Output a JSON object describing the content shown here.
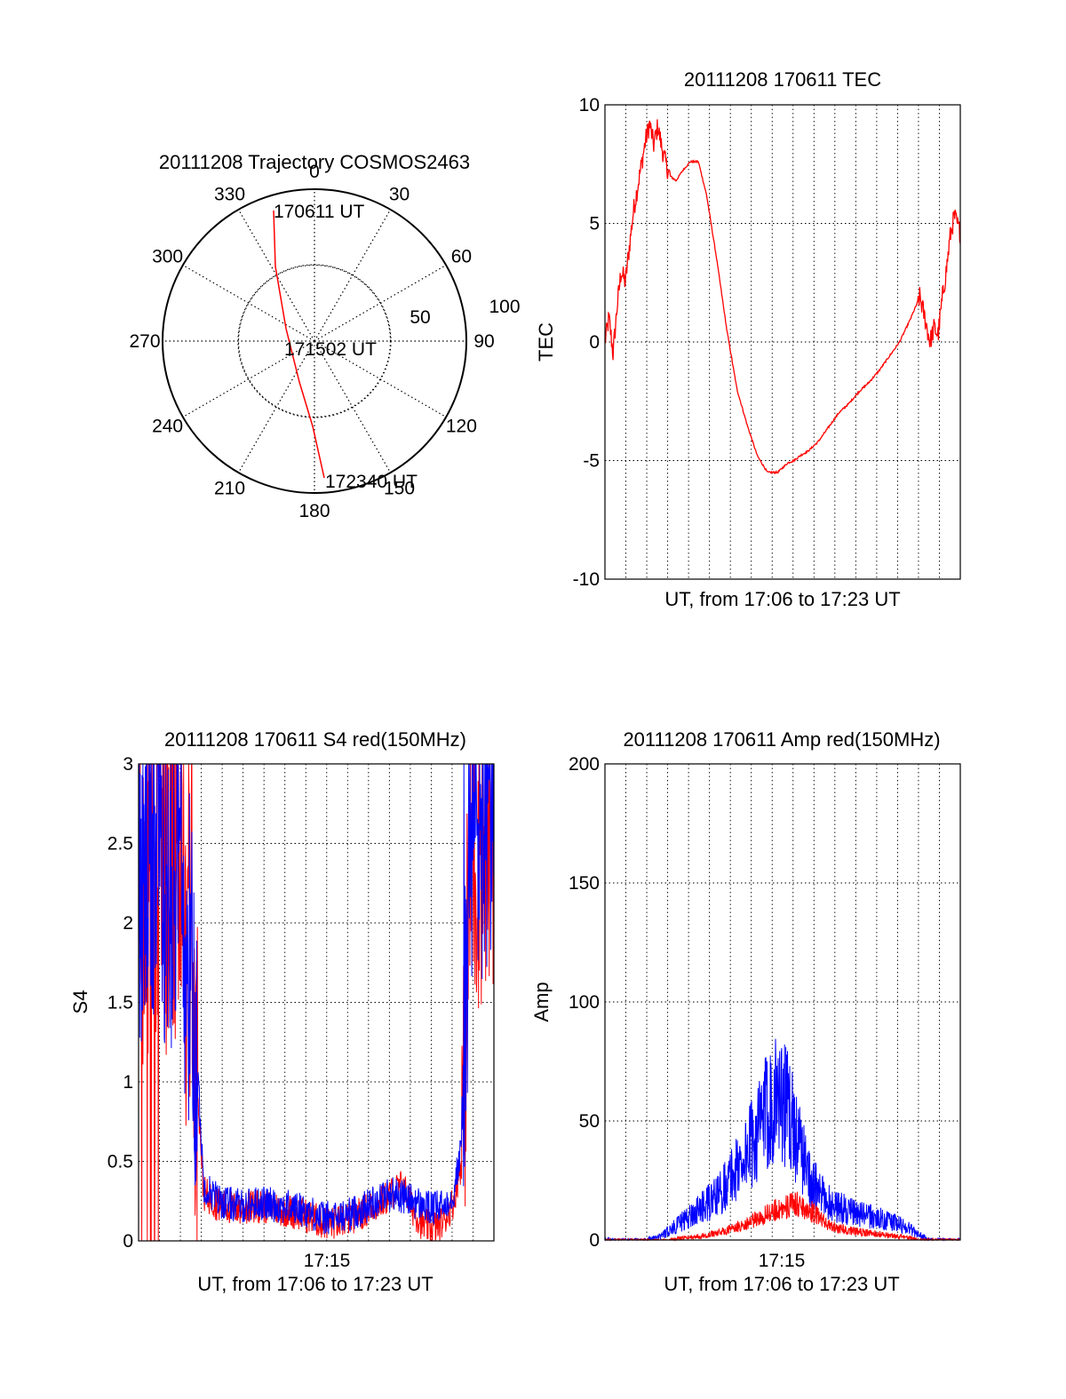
{
  "chart_data": [
    {
      "type": "polar",
      "title": "20111208 Trajectory COSMOS2463",
      "angle_labels": [
        "0",
        "30",
        "60",
        "90",
        "120",
        "150",
        "180",
        "210",
        "240",
        "270",
        "300",
        "330"
      ],
      "radial_labels": [
        "50",
        "100"
      ],
      "annotations": [
        "170611 UT",
        "171502 UT",
        "172340 UT"
      ],
      "series": [
        {
          "color": "#ff0000",
          "points_az_el": [
            [
              -17,
              15
            ],
            [
              -20,
              30
            ],
            [
              -45,
              80
            ],
            [
              150,
              88
            ],
            [
              164,
              60
            ],
            [
              170,
              40
            ],
            [
              172,
              20
            ],
            [
              173,
              8
            ]
          ]
        }
      ]
    },
    {
      "type": "line",
      "title": "20111208 170611 TEC",
      "ylabel": "TEC",
      "xlabel": "UT, from 17:06 to 17:23 UT",
      "ylim": [
        -10,
        10
      ],
      "yticks": [
        "10",
        "5",
        "0",
        "-5",
        "-10"
      ],
      "xlim": [
        "17:06:11",
        "17:23:40"
      ],
      "grid": true,
      "series": [
        {
          "color": "#ff0000",
          "x_min": [
            0,
            0.2,
            0.4,
            0.6,
            0.8,
            1.0,
            1.2,
            1.4,
            1.6,
            1.8,
            2.0,
            2.2,
            2.4,
            2.6,
            2.8,
            3.0,
            3.2,
            3.5,
            3.8,
            4.2,
            4.6,
            5.0,
            5.5,
            6.0,
            6.5,
            7.0,
            7.5,
            8.0,
            8.5,
            9.0,
            9.3,
            9.6,
            10.0,
            10.5,
            11.0,
            11.5,
            12.0,
            12.5,
            13.0,
            13.5,
            14.0,
            14.5,
            15.0,
            15.5,
            15.8,
            16.0,
            16.2,
            16.4,
            16.6,
            16.8,
            17.0,
            17.2,
            17.49
          ],
          "values": [
            0,
            1,
            -0.5,
            1.5,
            3,
            2.5,
            4,
            5.5,
            6.5,
            7.5,
            8.5,
            9.2,
            8.3,
            9.1,
            8.2,
            7.5,
            7.0,
            6.8,
            7.2,
            7.6,
            7.6,
            6.2,
            3.5,
            0.5,
            -2.0,
            -3.5,
            -4.8,
            -5.5,
            -5.5,
            -5.1,
            -5.0,
            -4.8,
            -4.6,
            -4.2,
            -3.6,
            -3.0,
            -2.6,
            -2.1,
            -1.7,
            -1.2,
            -0.6,
            0.0,
            0.9,
            1.9,
            0.8,
            0.0,
            0.6,
            0.3,
            1.8,
            3.0,
            4.5,
            5.3,
            4.6
          ]
        }
      ]
    },
    {
      "type": "line",
      "title": "20111208 170611 S4 red(150MHz)",
      "ylabel": "S4",
      "xlabel": "UT, from 17:06 to 17:23 UT",
      "ylim": [
        0,
        3
      ],
      "yticks": [
        "3",
        "2.5",
        "2",
        "1.5",
        "1",
        "0.5",
        "0"
      ],
      "xtick_label": "17:15",
      "grid": true,
      "series": [
        {
          "color": "#ff0000",
          "x_min": [
            0,
            1.0,
            2.0,
            2.6,
            2.9,
            3.2,
            4.0,
            5.0,
            6.0,
            7.0,
            8.0,
            9.0,
            9.5,
            10.0,
            11.0,
            12.0,
            12.5,
            13.0,
            13.5,
            14.0,
            14.5,
            15.0,
            15.5,
            15.9,
            16.1,
            16.3,
            17.49
          ],
          "values": [
            2.0,
            2.3,
            2.1,
            1.6,
            1.0,
            0.3,
            0.22,
            0.2,
            0.22,
            0.2,
            0.17,
            0.12,
            0.11,
            0.12,
            0.18,
            0.25,
            0.3,
            0.35,
            0.2,
            0.1,
            0.08,
            0.12,
            0.25,
            0.5,
            1.4,
            2.4,
            2.7
          ]
        },
        {
          "color": "#0000ff",
          "x_min": [
            0,
            1.0,
            2.0,
            2.6,
            2.9,
            3.2,
            4.0,
            5.0,
            6.0,
            7.0,
            8.0,
            9.0,
            9.5,
            10.0,
            11.0,
            12.0,
            12.5,
            13.0,
            13.5,
            14.0,
            14.5,
            15.0,
            15.5,
            15.9,
            16.1,
            16.3,
            17.49
          ],
          "values": [
            2.2,
            2.4,
            2.2,
            1.7,
            1.1,
            0.35,
            0.25,
            0.22,
            0.24,
            0.22,
            0.2,
            0.15,
            0.14,
            0.15,
            0.2,
            0.28,
            0.3,
            0.28,
            0.25,
            0.22,
            0.2,
            0.22,
            0.3,
            0.6,
            1.5,
            2.5,
            2.8
          ]
        }
      ]
    },
    {
      "type": "line",
      "title": "20111208 170611 Amp red(150MHz)",
      "ylabel": "Amp",
      "xlabel": "UT, from 17:06 to 17:23 UT",
      "ylim": [
        0,
        200
      ],
      "yticks": [
        "200",
        "150",
        "100",
        "50",
        "0"
      ],
      "xtick_label": "17:15",
      "grid": true,
      "series": [
        {
          "color": "#0000ff",
          "x_min": [
            0,
            2.0,
            2.8,
            3.5,
            4.5,
            5.5,
            6.5,
            7.5,
            8.0,
            8.5,
            9.0,
            9.5,
            10.0,
            10.5,
            11.0,
            12.0,
            13.0,
            14.0,
            15.0,
            15.5,
            16.0,
            17.49
          ],
          "values": [
            0,
            0,
            2,
            6,
            12,
            18,
            30,
            45,
            55,
            62,
            55,
            42,
            28,
            20,
            16,
            12,
            10,
            8,
            5,
            2,
            0,
            0
          ]
        },
        {
          "color": "#ff0000",
          "x_min": [
            0,
            3.0,
            4.0,
            5.0,
            6.0,
            7.0,
            7.5,
            8.0,
            8.5,
            9.0,
            9.5,
            10.0,
            10.5,
            11.0,
            12.0,
            13.0,
            14.0,
            15.0,
            15.5,
            17.49
          ],
          "values": [
            0,
            0,
            1,
            2,
            4,
            7,
            9,
            11,
            13,
            14,
            15,
            13,
            10,
            6,
            4,
            3,
            2,
            1,
            0,
            0
          ]
        }
      ]
    }
  ]
}
